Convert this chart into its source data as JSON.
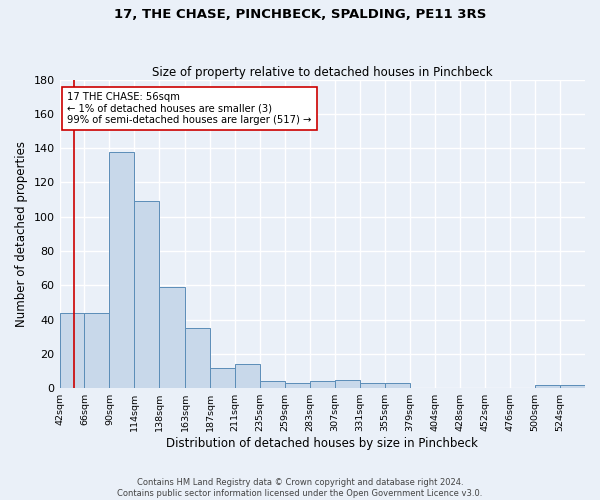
{
  "title": "17, THE CHASE, PINCHBECK, SPALDING, PE11 3RS",
  "subtitle": "Size of property relative to detached houses in Pinchbeck",
  "xlabel": "Distribution of detached houses by size in Pinchbeck",
  "ylabel": "Number of detached properties",
  "bin_labels": [
    "42sqm",
    "66sqm",
    "90sqm",
    "114sqm",
    "138sqm",
    "163sqm",
    "187sqm",
    "211sqm",
    "235sqm",
    "259sqm",
    "283sqm",
    "307sqm",
    "331sqm",
    "355sqm",
    "379sqm",
    "404sqm",
    "428sqm",
    "452sqm",
    "476sqm",
    "500sqm",
    "524sqm"
  ],
  "bin_edges": [
    42,
    66,
    90,
    114,
    138,
    163,
    187,
    211,
    235,
    259,
    283,
    307,
    331,
    355,
    379,
    404,
    428,
    452,
    476,
    500,
    524,
    548
  ],
  "counts": [
    44,
    44,
    138,
    109,
    59,
    35,
    12,
    14,
    4,
    3,
    4,
    5,
    3,
    3,
    0,
    0,
    0,
    0,
    0,
    2,
    2
  ],
  "bar_facecolor": "#c8d8ea",
  "bar_edgecolor": "#5b8db8",
  "background_color": "#eaf0f8",
  "grid_color": "#ffffff",
  "vline_x": 56,
  "vline_color": "#cc0000",
  "annotation_text": "17 THE CHASE: 56sqm\n← 1% of detached houses are smaller (3)\n99% of semi-detached houses are larger (517) →",
  "annotation_box_edgecolor": "#cc0000",
  "annotation_box_facecolor": "#ffffff",
  "ylim": [
    0,
    180
  ],
  "yticks": [
    0,
    20,
    40,
    60,
    80,
    100,
    120,
    140,
    160,
    180
  ],
  "footer_line1": "Contains HM Land Registry data © Crown copyright and database right 2024.",
  "footer_line2": "Contains public sector information licensed under the Open Government Licence v3.0."
}
